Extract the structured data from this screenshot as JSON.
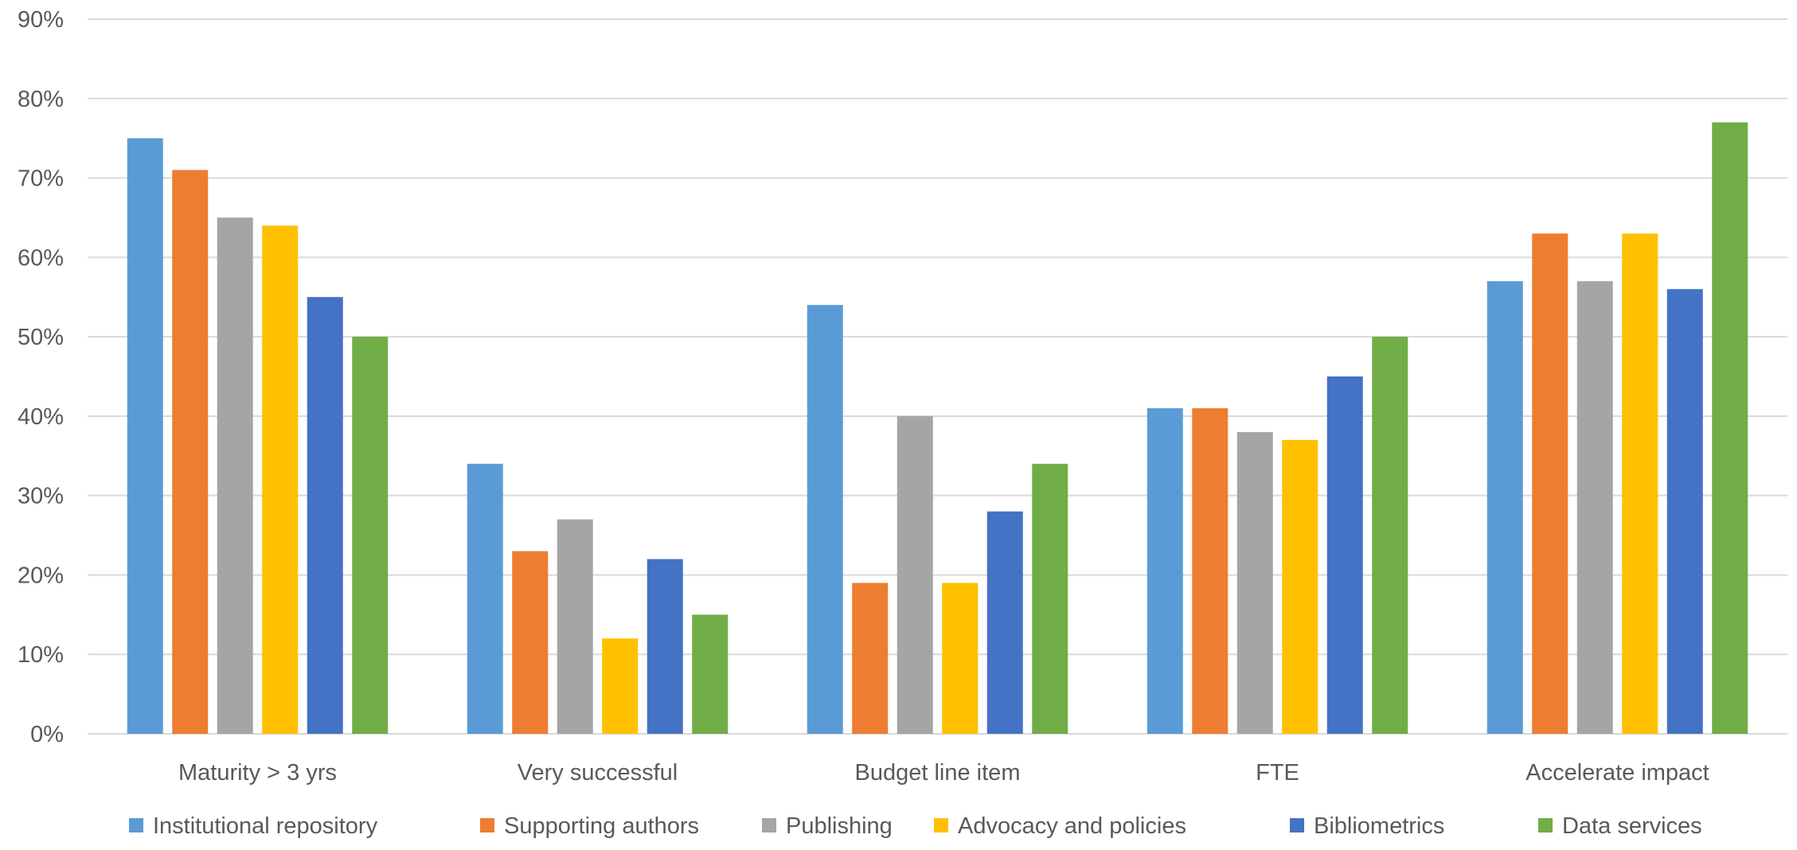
{
  "chart_data": {
    "type": "bar",
    "title": "",
    "xlabel": "",
    "ylabel": "",
    "ylim": [
      0,
      90
    ],
    "y_tick_step": 10,
    "y_tick_format": "percent",
    "grid": true,
    "legend_position": "bottom",
    "categories": [
      "Maturity > 3 yrs",
      "Very successful",
      "Budget line item",
      "FTE",
      "Accelerate impact"
    ],
    "series": [
      {
        "name": "Institutional repository",
        "color": "#5B9BD5",
        "values": [
          75,
          34,
          54,
          41,
          57
        ]
      },
      {
        "name": "Supporting authors",
        "color": "#ED7D31",
        "values": [
          71,
          23,
          19,
          41,
          63
        ]
      },
      {
        "name": "Publishing",
        "color": "#A5A5A5",
        "values": [
          65,
          27,
          40,
          38,
          57
        ]
      },
      {
        "name": "Advocacy and policies",
        "color": "#FFC000",
        "values": [
          64,
          12,
          19,
          37,
          63
        ]
      },
      {
        "name": "Bibliometrics",
        "color": "#4472C4",
        "values": [
          55,
          22,
          28,
          45,
          56
        ]
      },
      {
        "name": "Data services",
        "color": "#70AD47",
        "values": [
          50,
          15,
          34,
          50,
          77
        ]
      }
    ]
  }
}
